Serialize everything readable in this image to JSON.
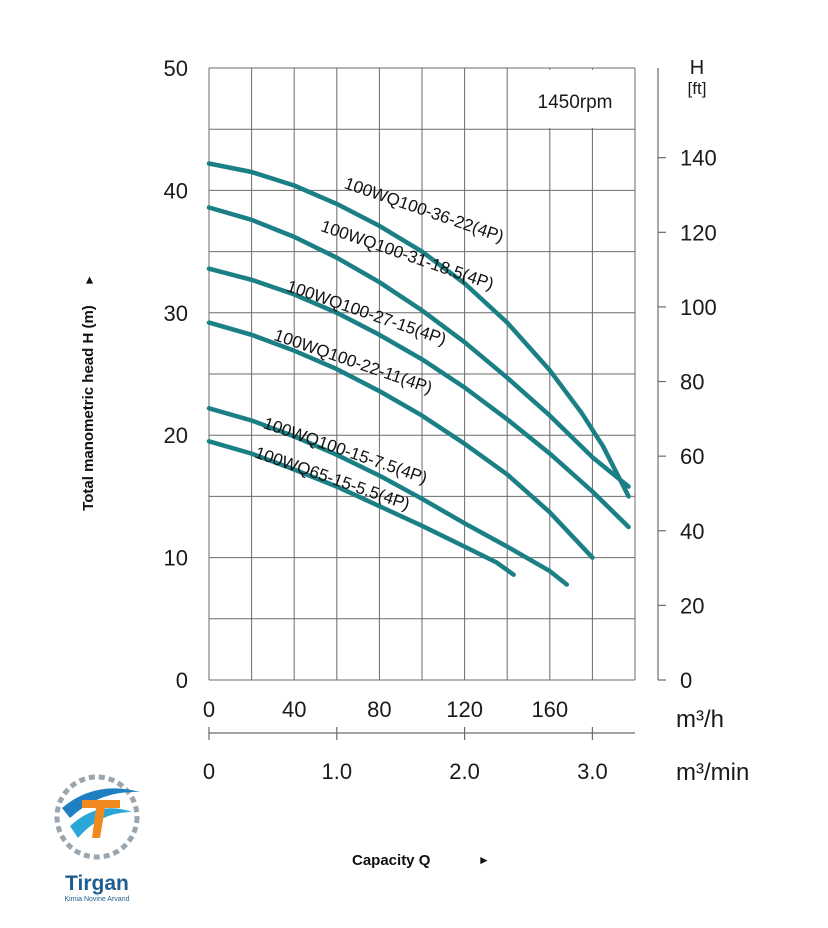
{
  "chart_data": {
    "type": "line",
    "speed_label": "1450rpm",
    "ylabel": "Total manometric head H (m)",
    "ylabel_arrow": "►",
    "xlabel": "Capacity Q",
    "xlabel_arrow": "►",
    "right_axis_title_line1": "H",
    "right_axis_title_line2": "[ft]",
    "x_unit_primary": "m³/h",
    "x_unit_secondary": "m³/min",
    "xlim": [
      0,
      200
    ],
    "ylim": [
      0,
      50
    ],
    "y_ticks": [
      "0",
      "10",
      "20",
      "30",
      "40",
      "50"
    ],
    "y_tick_values": [
      0,
      10,
      20,
      30,
      40,
      50
    ],
    "x_ticks": [
      "0",
      "40",
      "80",
      "120",
      "160"
    ],
    "x_tick_values": [
      0,
      40,
      80,
      120,
      160
    ],
    "x2_ticks": [
      "0",
      "1.0",
      "2.0",
      "3.0"
    ],
    "x2_tick_values_m3h": [
      0,
      60,
      120,
      180
    ],
    "y2_ticks": [
      "0",
      "20",
      "40",
      "60",
      "80",
      "100",
      "120",
      "140"
    ],
    "y2_tick_values_ft": [
      0,
      20,
      40,
      60,
      80,
      100,
      120,
      140
    ],
    "grid": true,
    "line_color": "#1b7f86",
    "series": [
      {
        "name": "100WQ100-36-22(4P)",
        "x": [
          0,
          20,
          40,
          60,
          80,
          100,
          120,
          140,
          160,
          175,
          185,
          197
        ],
        "y": [
          42.2,
          41.5,
          40.4,
          38.9,
          37.1,
          35.0,
          32.4,
          29.2,
          25.3,
          21.8,
          19.1,
          15.0
        ]
      },
      {
        "name": "100WQ100-31-18.5(4P)",
        "x": [
          0,
          20,
          40,
          60,
          80,
          100,
          120,
          140,
          160,
          180,
          197
        ],
        "y": [
          38.6,
          37.6,
          36.2,
          34.5,
          32.5,
          30.2,
          27.6,
          24.7,
          21.6,
          18.2,
          15.8
        ]
      },
      {
        "name": "100WQ100-27-15(4P)",
        "x": [
          0,
          20,
          40,
          60,
          80,
          100,
          120,
          140,
          160,
          180,
          197
        ],
        "y": [
          33.6,
          32.7,
          31.5,
          30.0,
          28.2,
          26.2,
          23.9,
          21.3,
          18.5,
          15.4,
          12.5
        ]
      },
      {
        "name": "100WQ100-22-11(4P)",
        "x": [
          0,
          20,
          40,
          60,
          80,
          100,
          120,
          140,
          160,
          180
        ],
        "y": [
          29.2,
          28.2,
          26.9,
          25.4,
          23.6,
          21.6,
          19.3,
          16.8,
          13.7,
          10.0
        ]
      },
      {
        "name": "100WQ100-15-7.5(4P)",
        "x": [
          0,
          20,
          40,
          60,
          80,
          100,
          120,
          140,
          160,
          168
        ],
        "y": [
          22.2,
          21.2,
          19.9,
          18.4,
          16.7,
          14.8,
          12.8,
          10.9,
          8.9,
          7.8
        ]
      },
      {
        "name": "100WQ65-15-5.5(4P)",
        "x": [
          0,
          20,
          40,
          60,
          80,
          100,
          120,
          135,
          143
        ],
        "y": [
          19.5,
          18.5,
          17.2,
          15.8,
          14.2,
          12.6,
          10.9,
          9.6,
          8.6
        ]
      }
    ]
  },
  "logo": {
    "name": "Tirgan",
    "tagline": "Kimia Novine Arvand"
  }
}
